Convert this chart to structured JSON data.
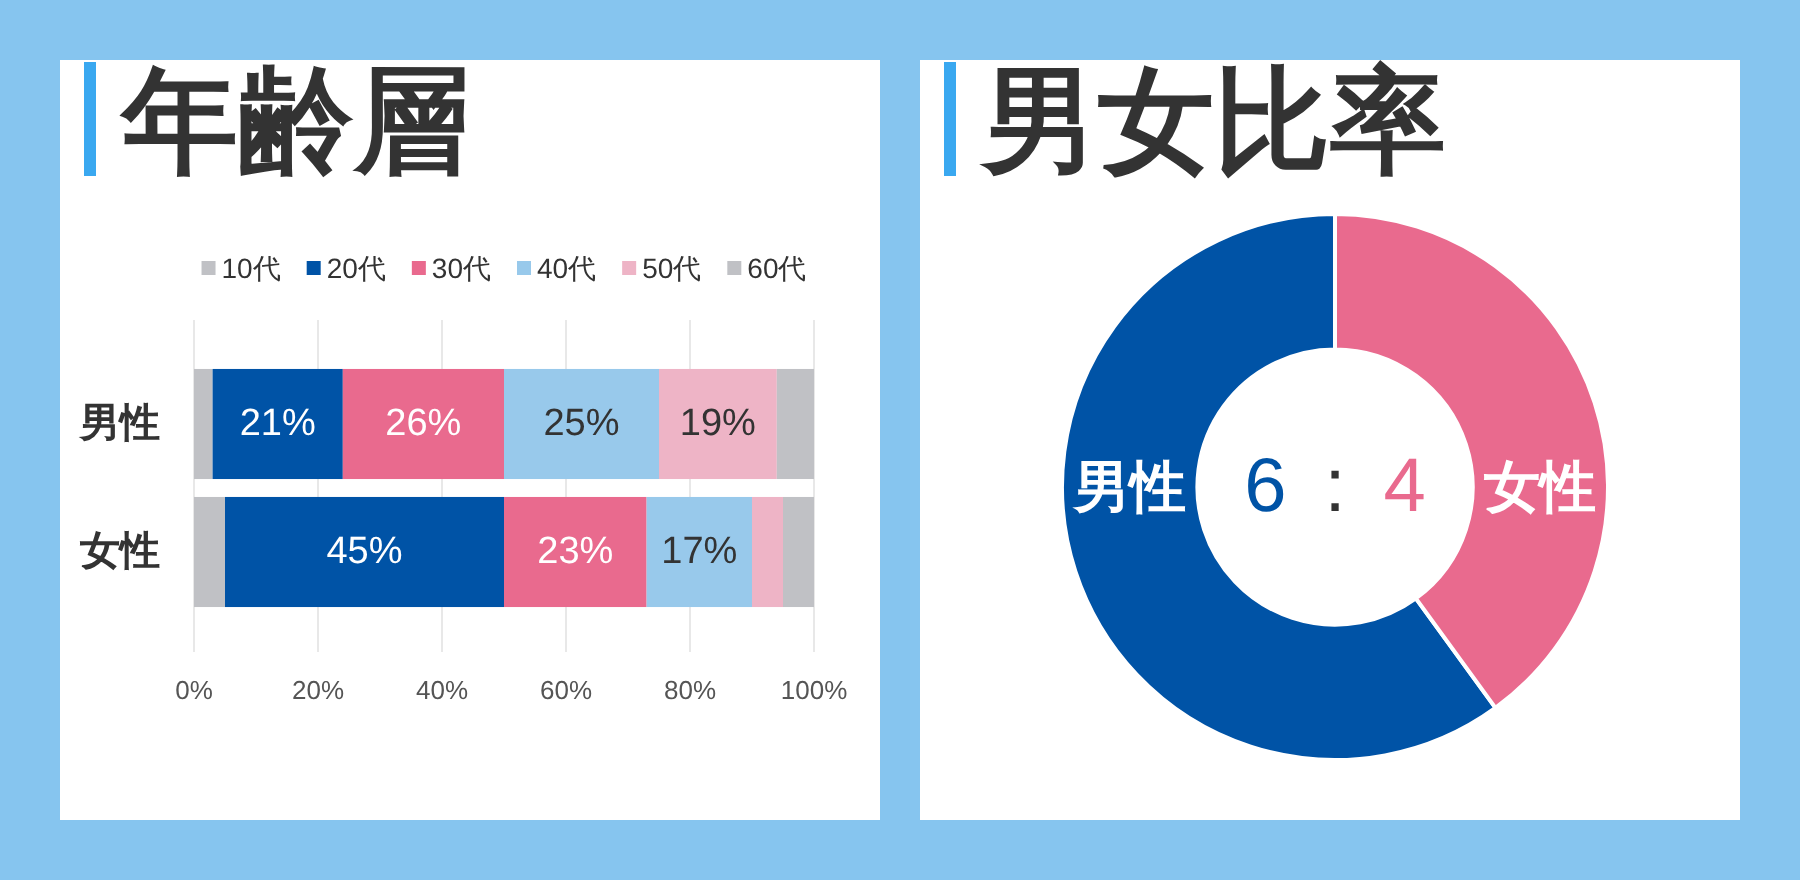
{
  "chart_data": [
    {
      "type": "bar",
      "orientation": "horizontal",
      "stacked": true,
      "title": "年齢層",
      "categories": [
        "男性",
        "女性"
      ],
      "series": [
        {
          "name": "10代",
          "color": "#c0c1c5",
          "values": [
            3,
            5
          ],
          "value_labels": [
            null,
            null
          ]
        },
        {
          "name": "20代",
          "color": "#0053a6",
          "values": [
            21,
            45
          ],
          "value_labels": [
            "21%",
            "45%"
          ]
        },
        {
          "name": "30代",
          "color": "#e96a8e",
          "values": [
            26,
            23
          ],
          "value_labels": [
            "26%",
            "23%"
          ]
        },
        {
          "name": "40代",
          "color": "#98c9eb",
          "values": [
            25,
            17
          ],
          "value_labels": [
            "25%",
            "17%"
          ]
        },
        {
          "name": "50代",
          "color": "#eeb4c6",
          "values": [
            19,
            5
          ],
          "value_labels": [
            "19%",
            null
          ]
        },
        {
          "name": "60代",
          "color": "#c0c1c5",
          "values": [
            6,
            5
          ],
          "value_labels": [
            null,
            null
          ]
        }
      ],
      "xlim": [
        0,
        100
      ],
      "xticks": [
        {
          "value": 0,
          "label": "0%"
        },
        {
          "value": 20,
          "label": "20%"
        },
        {
          "value": 40,
          "label": "40%"
        },
        {
          "value": 60,
          "label": "60%"
        },
        {
          "value": 80,
          "label": "80%"
        },
        {
          "value": 100,
          "label": "100%"
        }
      ],
      "grid": "x",
      "legend": "top"
    },
    {
      "type": "donut",
      "title": "男女比率",
      "categories": [
        "男性",
        "女性"
      ],
      "values": [
        60,
        40
      ],
      "colors": [
        "#0053a6",
        "#e96a8e"
      ],
      "annotations": [
        "6 : 4"
      ]
    }
  ]
}
